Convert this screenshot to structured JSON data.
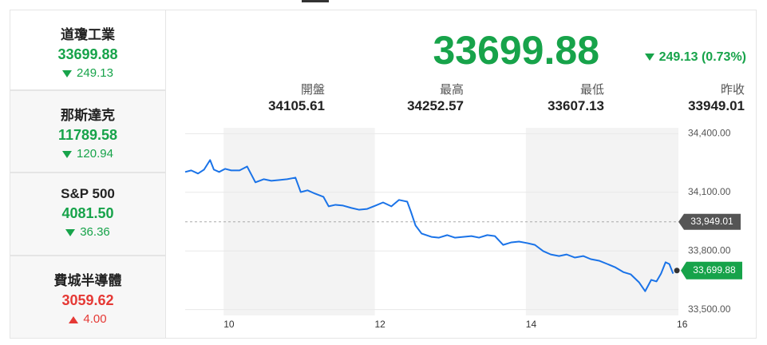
{
  "sidebar": [
    {
      "name": "道瓊工業",
      "value": "33699.88",
      "change": "249.13",
      "direction": "down"
    },
    {
      "name": "那斯達克",
      "value": "11789.58",
      "change": "120.94",
      "direction": "down"
    },
    {
      "name": "S&P 500",
      "value": "4081.50",
      "change": "36.36",
      "direction": "down"
    },
    {
      "name": "費城半導體",
      "value": "3059.62",
      "change": "4.00",
      "direction": "up"
    }
  ],
  "header": {
    "price": "33699.88",
    "change": "249.13 (0.73%)",
    "direction": "down"
  },
  "stats": [
    {
      "label": "開盤",
      "value": "34105.61"
    },
    {
      "label": "最高",
      "value": "34252.57"
    },
    {
      "label": "最低",
      "value": "33607.13"
    },
    {
      "label": "昨收",
      "value": "33949.01"
    }
  ],
  "chart_data": {
    "type": "line",
    "x": [
      9.42,
      9.5,
      9.59,
      9.67,
      9.75,
      9.8,
      9.87,
      9.95,
      10.03,
      10.14,
      10.24,
      10.35,
      10.46,
      10.56,
      10.67,
      10.77,
      10.88,
      10.95,
      11.04,
      11.14,
      11.25,
      11.32,
      11.41,
      11.51,
      11.62,
      11.72,
      11.83,
      11.94,
      12.04,
      12.15,
      12.25,
      12.36,
      12.41,
      12.47,
      12.55,
      12.68,
      12.78,
      12.89,
      12.99,
      13.1,
      13.21,
      13.31,
      13.42,
      13.52,
      13.63,
      13.74,
      13.84,
      13.95,
      14.05,
      14.16,
      14.26,
      14.37,
      14.47,
      14.58,
      14.69,
      14.79,
      14.9,
      15.01,
      15.11,
      15.22,
      15.32,
      15.43,
      15.51,
      15.59,
      15.66,
      15.72,
      15.78,
      15.83,
      15.88
    ],
    "series": [
      {
        "color": "#1a73e8",
        "values": [
          34204,
          34212,
          34196,
          34216,
          34265,
          34216,
          34204,
          34220,
          34212,
          34212,
          34232,
          34151,
          34167,
          34159,
          34163,
          34167,
          34175,
          34101,
          34110,
          34093,
          34077,
          34028,
          34036,
          34032,
          34020,
          34011,
          34015,
          34032,
          34048,
          34028,
          34061,
          34052,
          33999,
          33930,
          33889,
          33872,
          33868,
          33881,
          33868,
          33872,
          33876,
          33868,
          33881,
          33876,
          33831,
          33844,
          33848,
          33840,
          33831,
          33799,
          33782,
          33774,
          33782,
          33766,
          33774,
          33758,
          33750,
          33733,
          33717,
          33692,
          33680,
          33639,
          33594,
          33652,
          33644,
          33684,
          33742,
          33733,
          33684
        ]
      }
    ],
    "xlim": [
      9.42,
      15.95
    ],
    "ylim": [
      33470,
      34430
    ],
    "xticks": [
      10,
      12,
      14,
      16
    ],
    "yticks": [
      {
        "value": 33500,
        "label": "33,500.00"
      },
      {
        "value": 33800,
        "label": "33,800.00"
      },
      {
        "value": 34100,
        "label": "34,100.00"
      },
      {
        "value": 34400,
        "label": "34,400.00"
      }
    ],
    "shaded": [
      [
        9.93,
        11.93
      ],
      [
        13.93,
        15.95
      ]
    ],
    "reference": {
      "value": 33949.01,
      "label": "33,949.01"
    },
    "current": {
      "x": 15.93,
      "value": 33699.88,
      "label": "33,699.88"
    },
    "grid": true
  }
}
